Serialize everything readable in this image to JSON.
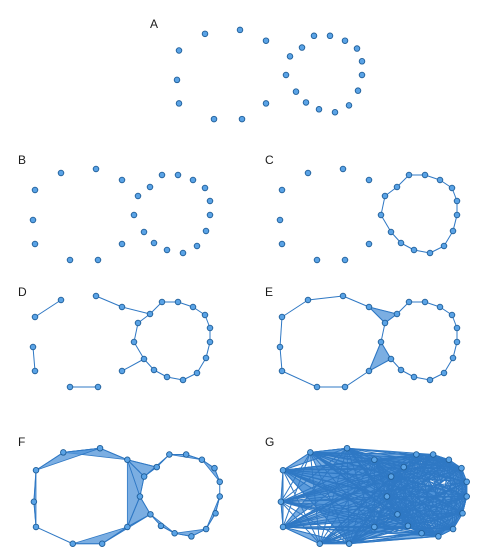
{
  "panels": [
    {
      "label": "A",
      "stage": 0
    },
    {
      "label": "B",
      "stage": 0
    },
    {
      "label": "C",
      "stage": 1
    },
    {
      "label": "D",
      "stage": 2
    },
    {
      "label": "E",
      "stage": 3
    },
    {
      "label": "F",
      "stage": 4
    },
    {
      "label": "G",
      "stage": 5
    }
  ],
  "colors": {
    "node": "#5aa3e6",
    "node_stroke": "#1f5e99",
    "edge": "#2f78c4",
    "face": "#4f93d8"
  }
}
